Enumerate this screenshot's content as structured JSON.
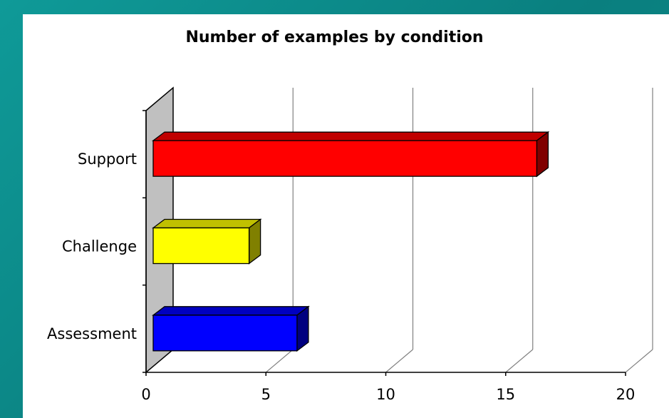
{
  "chart_data": {
    "type": "bar",
    "orientation": "horizontal",
    "title": "Number of examples by condition",
    "xlabel": "",
    "ylabel": "",
    "categories": [
      "Support",
      "Challenge",
      "Assessment"
    ],
    "values": [
      16,
      4,
      6
    ],
    "xlim": [
      0,
      20
    ],
    "xticks": [
      "0",
      "5",
      "10",
      "15",
      "20"
    ],
    "grid": true,
    "legend": "none",
    "colors": {
      "Support": "#ff0000",
      "Challenge": "#ffff00",
      "Assessment": "#0000ff"
    },
    "side_colors": {
      "Support": "#800000",
      "Challenge": "#808000",
      "Assessment": "#000080"
    },
    "top_colors": {
      "Support": "#c00000",
      "Challenge": "#c0c000",
      "Assessment": "#0000c0"
    }
  }
}
